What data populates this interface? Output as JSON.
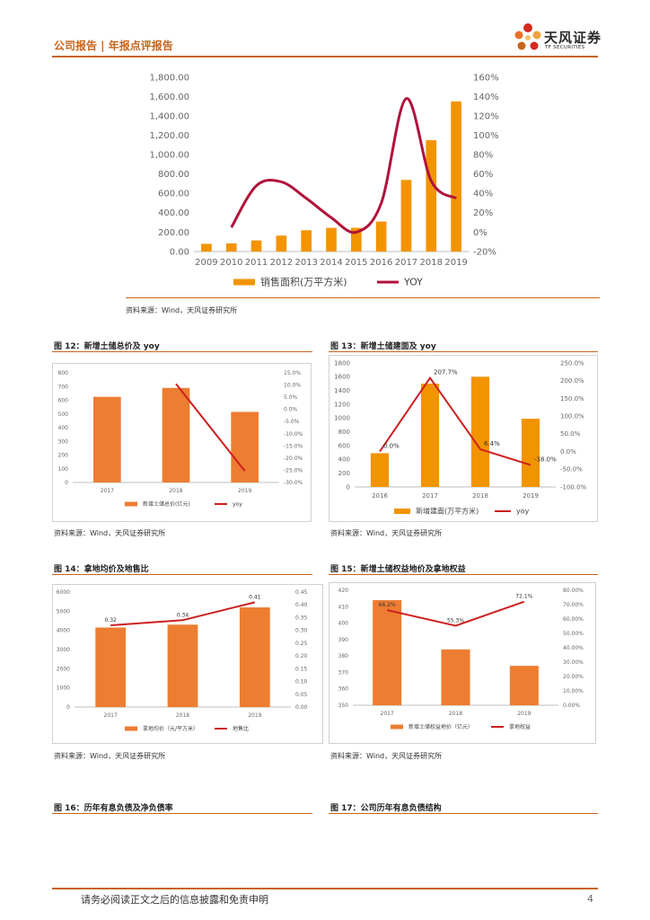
{
  "header": {
    "title": "公司报告 | 年报点评报告",
    "logo_name": "天风证券",
    "logo_en": "TF SECURITIES"
  },
  "colors": {
    "accent": "#c8641c",
    "bar": "#ed7d31",
    "bar_alt": "#f29400",
    "line": "#b0123a",
    "line_alt": "#cc1f1f"
  },
  "figures": [
    {
      "title": "",
      "source": "资料来源：Wind，天风证券研究所"
    },
    {
      "title": "图 12：新增土储总价及 yoy",
      "source": "资料来源：Wind，天风证券研究所"
    },
    {
      "title": "图 13：新增土储建面及 yoy",
      "source": "资料来源：Wind，天风证券研究所"
    },
    {
      "title": "图 14：拿地均价及地售比",
      "source": "资料来源：Wind，天风证券研究所"
    },
    {
      "title": "图 15：新增土储权益地价及拿地权益",
      "source": "资料来源：Wind，天风证券研究所"
    },
    {
      "title": "图 16：历年有息负债及净负债率",
      "source": ""
    },
    {
      "title": "图 17：公司历年有息负债结构",
      "source": ""
    }
  ],
  "chart_data": [
    {
      "id": "sales-area",
      "type": "bar+line",
      "categories": [
        "2009",
        "2010",
        "2011",
        "2012",
        "2013",
        "2014",
        "2015",
        "2016",
        "2017",
        "2018",
        "2019"
      ],
      "series": [
        {
          "name": "销售面积(万平方米)",
          "axis": "left",
          "values": [
            80,
            85,
            115,
            165,
            220,
            245,
            245,
            310,
            740,
            1150,
            1550
          ]
        },
        {
          "name": "YOY",
          "axis": "right",
          "values": [
            null,
            5,
            48,
            52,
            35,
            15,
            0,
            30,
            138,
            53,
            35
          ]
        }
      ],
      "y_left": {
        "min": 0,
        "max": 1800,
        "step": 200,
        "ticks": [
          "0.00",
          "200.00",
          "400.00",
          "600.00",
          "800.00",
          "1,000.00",
          "1,200.00",
          "1,400.00",
          "1,600.00",
          "1,800.00"
        ]
      },
      "y_right": {
        "min": -20,
        "max": 160,
        "step": 20,
        "ticks": [
          "-20%",
          "0%",
          "20%",
          "40%",
          "60%",
          "80%",
          "100%",
          "120%",
          "140%",
          "160%"
        ]
      },
      "legend": [
        "销售面积(万平方米)",
        "YOY"
      ]
    },
    {
      "id": "land-total-price",
      "type": "bar+line",
      "categories": [
        "2017",
        "2018",
        "2019"
      ],
      "series": [
        {
          "name": "新增土储总价(亿元)",
          "axis": "left",
          "values": [
            625,
            690,
            515
          ]
        },
        {
          "name": "yoy",
          "axis": "right",
          "values": [
            null,
            10.5,
            -25.3
          ]
        }
      ],
      "y_left": {
        "min": 0,
        "max": 800,
        "ticks": [
          "0",
          "100",
          "200",
          "300",
          "400",
          "500",
          "600",
          "700",
          "800"
        ]
      },
      "y_right": {
        "min": -30,
        "max": 15,
        "ticks": [
          "-30.0%",
          "-25.0%",
          "-20.0%",
          "-15.0%",
          "-10.0%",
          "-5.0%",
          "0.0%",
          "5.0%",
          "10.0%",
          "15.0%"
        ]
      },
      "legend": [
        "新增土储总价(亿元)",
        "yoy"
      ]
    },
    {
      "id": "land-area",
      "type": "bar+line",
      "categories": [
        "2016",
        "2017",
        "2018",
        "2019"
      ],
      "series": [
        {
          "name": "新增建面(万平方米)",
          "axis": "left",
          "values": [
            490,
            1500,
            1600,
            990
          ]
        },
        {
          "name": "yoy",
          "axis": "right",
          "values": [
            0.0,
            207.7,
            6.4,
            -38.0
          ]
        }
      ],
      "data_labels": [
        "0.0%",
        "207.7%",
        "6.4%",
        "-38.0%"
      ],
      "y_left": {
        "min": 0,
        "max": 1800,
        "ticks": [
          "0",
          "200",
          "400",
          "600",
          "800",
          "1000",
          "1200",
          "1400",
          "1600",
          "1800"
        ]
      },
      "y_right": {
        "min": -100,
        "max": 250,
        "ticks": [
          "-100.0%",
          "-50.0%",
          "0.0%",
          "50.0%",
          "100.0%",
          "150.0%",
          "200.0%",
          "250.0%"
        ]
      },
      "legend": [
        "新增建面(万平方米)",
        "yoy"
      ]
    },
    {
      "id": "land-avg-price",
      "type": "bar+line",
      "categories": [
        "2017",
        "2018",
        "2019"
      ],
      "series": [
        {
          "name": "拿地均价（元/平方米）",
          "axis": "left",
          "values": [
            4150,
            4300,
            5200
          ]
        },
        {
          "name": "地售比",
          "axis": "right",
          "values": [
            0.32,
            0.34,
            0.41
          ]
        }
      ],
      "data_labels": [
        "0.32",
        "0.34",
        "0.41"
      ],
      "y_left": {
        "min": 0,
        "max": 6000,
        "ticks": [
          "0",
          "1000",
          "2000",
          "3000",
          "4000",
          "5000",
          "6000"
        ]
      },
      "y_right": {
        "min": 0,
        "max": 0.45,
        "ticks": [
          "0.00",
          "0.05",
          "0.10",
          "0.15",
          "0.20",
          "0.25",
          "0.30",
          "0.35",
          "0.40",
          "0.45"
        ]
      },
      "legend": [
        "拿地均价（元/平方米）",
        "地售比"
      ]
    },
    {
      "id": "equity-land-price",
      "type": "bar+line",
      "categories": [
        "2017",
        "2018",
        "2019"
      ],
      "series": [
        {
          "name": "新增土储权益地价（亿元）",
          "axis": "left",
          "values": [
            414,
            384,
            374
          ]
        },
        {
          "name": "拿地权益",
          "axis": "right",
          "values": [
            66.2,
            55.3,
            72.1
          ]
        }
      ],
      "data_labels": [
        "66.2%",
        "55.3%",
        "72.1%"
      ],
      "y_left": {
        "min": 350,
        "max": 420,
        "ticks": [
          "350",
          "360",
          "370",
          "380",
          "390",
          "400",
          "410",
          "420"
        ]
      },
      "y_right": {
        "min": 0,
        "max": 80,
        "ticks": [
          "0.00%",
          "10.00%",
          "20.00%",
          "30.00%",
          "40.00%",
          "50.00%",
          "60.00%",
          "70.00%",
          "80.00%"
        ]
      },
      "legend": [
        "新增土储权益地价（亿元）",
        "拿地权益"
      ]
    }
  ],
  "footer": {
    "disclaimer": "请务必阅读正文之后的信息披露和免责申明",
    "page": "4"
  }
}
